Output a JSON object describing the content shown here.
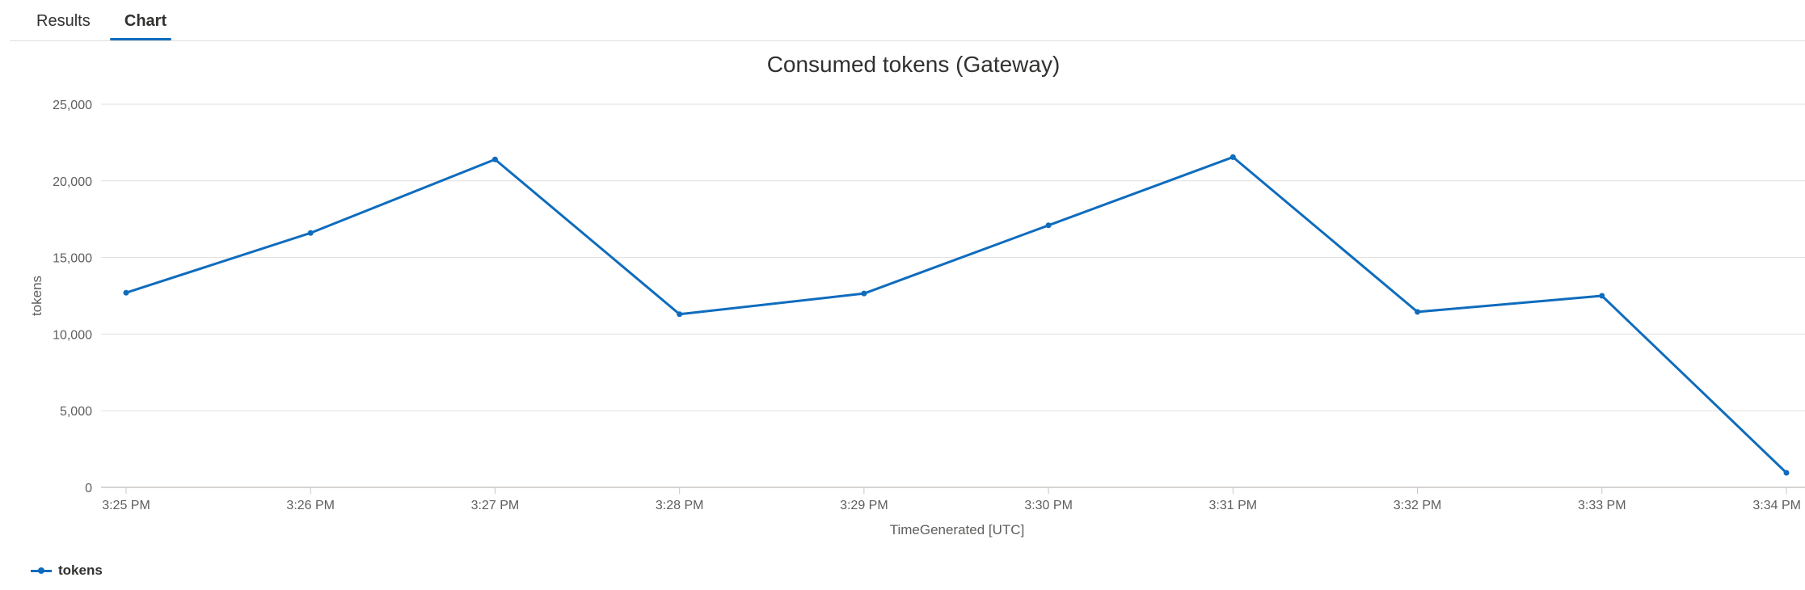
{
  "tabs": {
    "results_label": "Results",
    "chart_label": "Chart"
  },
  "chart_data": {
    "type": "line",
    "title": "Consumed tokens (Gateway)",
    "xlabel": "TimeGenerated [UTC]",
    "ylabel": "tokens",
    "categories": [
      "3:25 PM",
      "3:26 PM",
      "3:27 PM",
      "3:28 PM",
      "3:29 PM",
      "3:30 PM",
      "3:31 PM",
      "3:32 PM",
      "3:33 PM",
      "3:34 PM"
    ],
    "series": [
      {
        "name": "tokens",
        "color": "#0f6cbd",
        "values": [
          12700,
          16600,
          21400,
          11300,
          12650,
          17100,
          21550,
          11450,
          12500,
          950
        ]
      }
    ],
    "ylim": [
      0,
      25000
    ],
    "yticks": [
      0,
      5000,
      10000,
      15000,
      20000,
      25000
    ],
    "ytick_labels": [
      "0",
      "5,000",
      "10,000",
      "15,000",
      "20,000",
      "25,000"
    ],
    "grid": true,
    "legend": "bottom-left"
  }
}
